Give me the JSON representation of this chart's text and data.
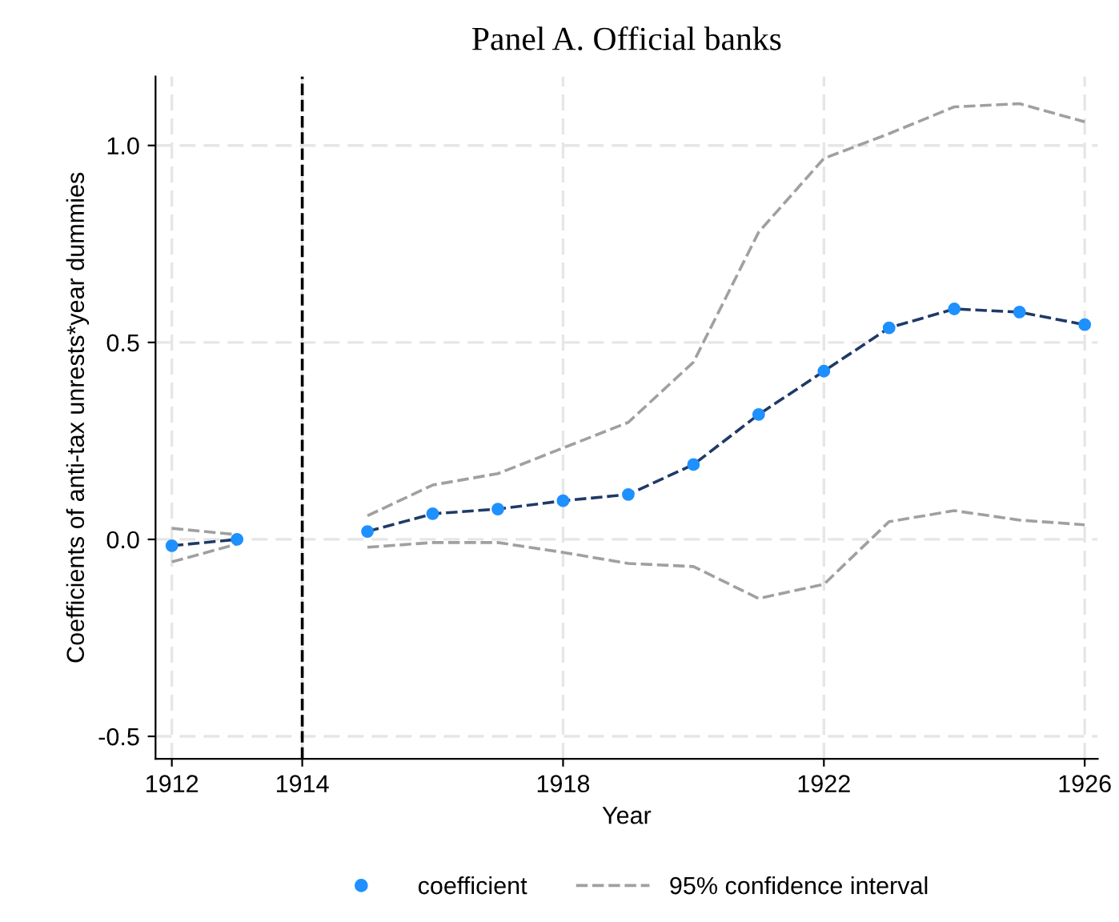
{
  "chart_data": {
    "type": "line",
    "title": "Panel A. Official banks",
    "xlabel": "Year",
    "ylabel": "Coefficients of anti-tax unrests*year dummies",
    "x": [
      1912,
      1913,
      1914,
      1915,
      1916,
      1917,
      1918,
      1919,
      1920,
      1921,
      1922,
      1923,
      1924,
      1925,
      1926
    ],
    "series": [
      {
        "color": "#1f3a68",
        "line_style": "dashed",
        "marker": "none",
        "values": [
          -0.016,
          0.0,
          null,
          0.02,
          0.065,
          0.077,
          0.098,
          0.114,
          0.19,
          0.317,
          0.427,
          0.537,
          0.585,
          0.577,
          0.545
        ]
      },
      {
        "type": "scatter",
        "name": "coefficient",
        "color": "#1e90ff",
        "marker": "circle",
        "values": [
          -0.016,
          0.0,
          null,
          0.02,
          0.065,
          0.077,
          0.098,
          0.114,
          0.19,
          0.317,
          0.427,
          0.537,
          0.585,
          0.577,
          0.545
        ]
      },
      {
        "name": "95% confidence interval",
        "color": "#a0a0a0",
        "line_style": "dashed",
        "marker": "none",
        "values": [
          0.028,
          0.012,
          null,
          0.06,
          0.138,
          0.167,
          0.232,
          0.297,
          0.45,
          0.78,
          0.967,
          1.03,
          1.098,
          1.106,
          1.06
        ]
      },
      {
        "color": "#a0a0a0",
        "line_style": "dashed",
        "marker": "none",
        "values": [
          -0.057,
          -0.012,
          null,
          -0.02,
          -0.008,
          -0.008,
          -0.033,
          -0.061,
          -0.069,
          -0.15,
          -0.114,
          0.045,
          0.073,
          0.049,
          0.037
        ]
      }
    ],
    "ref_lines": [
      {
        "axis": "x",
        "value": 1914,
        "color": "#000000",
        "line_style": "dashed"
      }
    ],
    "xlim": [
      1911.75,
      1926.2
    ],
    "xticks": [
      1912,
      1914,
      1918,
      1922,
      1926
    ],
    "ylim": [
      -0.557,
      1.175
    ],
    "yticks": [
      {
        "value": -0.5,
        "label": "-0.5"
      },
      {
        "value": 0,
        "label": "0.0"
      },
      {
        "value": 0.5,
        "label": "0.5"
      },
      {
        "value": 1,
        "label": "1.0"
      }
    ],
    "grid": true,
    "legend": "bottom"
  }
}
